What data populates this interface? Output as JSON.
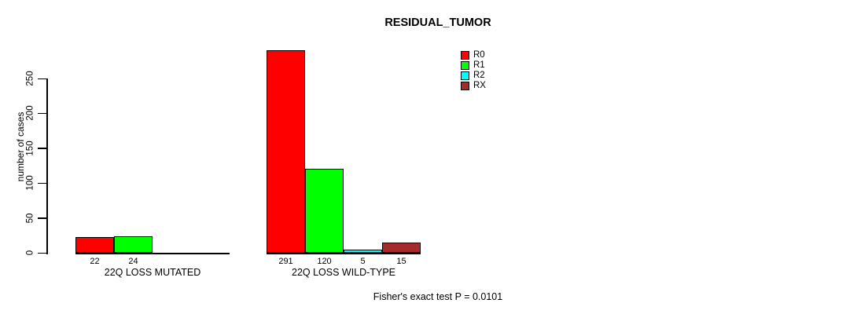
{
  "chart_data": {
    "type": "bar",
    "title": "RESIDUAL_TUMOR",
    "xlabel": "",
    "ylabel": "number of cases",
    "ylim": [
      0,
      250
    ],
    "yticks": [
      0,
      50,
      100,
      150,
      200,
      250
    ],
    "grid": false,
    "legend_position": "top-right",
    "categories": [
      "22Q LOSS MUTATED",
      "22Q LOSS WILD-TYPE"
    ],
    "series": [
      {
        "name": "R0",
        "color": "#ff0000",
        "values": [
          22,
          291
        ]
      },
      {
        "name": "R1",
        "color": "#00ff00",
        "values": [
          24,
          120
        ]
      },
      {
        "name": "R2",
        "color": "#00ffff",
        "values": [
          0,
          5
        ]
      },
      {
        "name": "RX",
        "color": "#a52a2a",
        "values": [
          0,
          15
        ]
      }
    ],
    "bar_value_labels": [
      [
        22,
        24
      ],
      [
        291,
        120,
        5,
        15
      ]
    ],
    "annotation": "Fisher's exact test P = 0.0101"
  }
}
